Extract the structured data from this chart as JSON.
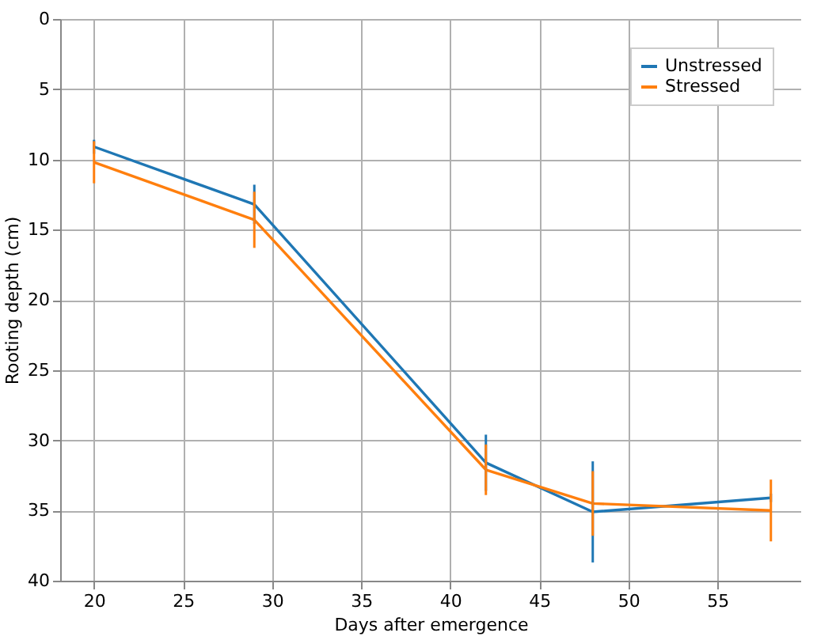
{
  "chart_data": {
    "type": "line",
    "xlabel": "Days after emergence",
    "ylabel": "Rooting depth (cm)",
    "x": [
      20,
      29,
      42,
      48,
      58
    ],
    "series": [
      {
        "name": "Unstressed",
        "color": "#1f77b4",
        "values": [
          9.1,
          13.2,
          31.6,
          35.1,
          34.1
        ],
        "errors": [
          0.5,
          1.4,
          2.0,
          3.6,
          0.3
        ]
      },
      {
        "name": "Stressed",
        "color": "#ff7f0e",
        "values": [
          10.2,
          14.3,
          32.1,
          34.5,
          35.0
        ],
        "errors": [
          1.5,
          2.0,
          1.8,
          2.3,
          2.2
        ]
      }
    ],
    "xlim": [
      18.1,
      59.7
    ],
    "ylim": [
      40,
      0
    ],
    "xticks": [
      20,
      25,
      30,
      35,
      40,
      45,
      50,
      55
    ],
    "yticks": [
      0,
      5,
      10,
      15,
      20,
      25,
      30,
      35,
      40
    ],
    "grid": true,
    "legend": "top right",
    "marker": "none",
    "line_style": "solid"
  }
}
